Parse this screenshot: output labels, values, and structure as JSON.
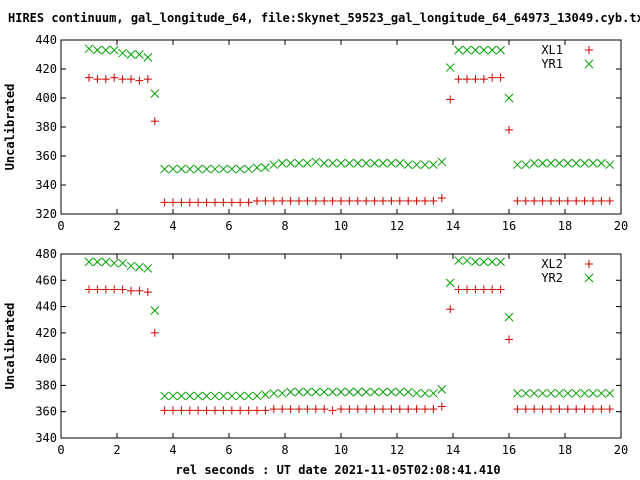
{
  "title": "HIRES continuum, gal_longitude_64, file:Skynet_59523_gal_longitude_64_64973_13049.cyb.txt",
  "xlabel": "rel seconds : UT date 2021-11-05T02:08:41.410",
  "colors": {
    "red": "#cc0000",
    "green": "#00a000",
    "axis": "#000000"
  },
  "chart_data": [
    {
      "type": "scatter",
      "ylabel": "Uncalibrated",
      "xlim": [
        0,
        20
      ],
      "ylim": [
        320,
        440
      ],
      "xticks": [
        0,
        2,
        4,
        6,
        8,
        10,
        12,
        14,
        16,
        18,
        20
      ],
      "yticks": [
        320,
        340,
        360,
        380,
        400,
        420,
        440
      ],
      "grid": false,
      "legend_position": "top-right",
      "series": [
        {
          "name": "XL1",
          "marker": "plus",
          "color": "#cc0000",
          "x": [
            1.0,
            1.3,
            1.6,
            1.9,
            2.2,
            2.5,
            2.8,
            3.1,
            3.35,
            3.7,
            4.0,
            4.3,
            4.6,
            4.9,
            5.2,
            5.5,
            5.8,
            6.1,
            6.4,
            6.7,
            7.0,
            7.3,
            7.6,
            7.9,
            8.2,
            8.5,
            8.8,
            9.1,
            9.4,
            9.7,
            10.0,
            10.3,
            10.6,
            10.9,
            11.2,
            11.5,
            11.8,
            12.1,
            12.4,
            12.7,
            13.0,
            13.3,
            13.6,
            13.9,
            14.2,
            14.5,
            14.8,
            15.1,
            15.4,
            15.7,
            16.0,
            16.3,
            16.6,
            16.9,
            17.2,
            17.5,
            17.8,
            18.1,
            18.4,
            18.7,
            19.0,
            19.3,
            19.6
          ],
          "y": [
            414,
            413,
            413,
            414,
            413,
            413,
            412,
            413,
            384,
            328,
            328,
            328,
            328,
            328,
            328,
            328,
            328,
            328,
            328,
            328,
            329,
            329,
            329,
            329,
            329,
            329,
            329,
            329,
            329,
            329,
            329,
            329,
            329,
            329,
            329,
            329,
            329,
            329,
            329,
            329,
            329,
            329,
            331,
            399,
            413,
            413,
            413,
            413,
            414,
            414,
            378,
            329,
            329,
            329,
            329,
            329,
            329,
            329,
            329,
            329,
            329,
            329,
            329
          ]
        },
        {
          "name": "YR1",
          "marker": "cross",
          "color": "#00a000",
          "x": [
            1.0,
            1.3,
            1.6,
            1.9,
            2.2,
            2.5,
            2.8,
            3.1,
            3.35,
            3.7,
            4.0,
            4.3,
            4.6,
            4.9,
            5.2,
            5.5,
            5.8,
            6.1,
            6.4,
            6.7,
            7.0,
            7.3,
            7.6,
            7.9,
            8.2,
            8.5,
            8.8,
            9.1,
            9.4,
            9.7,
            10.0,
            10.3,
            10.6,
            10.9,
            11.2,
            11.5,
            11.8,
            12.1,
            12.4,
            12.7,
            13.0,
            13.3,
            13.6,
            13.9,
            14.2,
            14.5,
            14.8,
            15.1,
            15.4,
            15.7,
            16.0,
            16.3,
            16.6,
            16.9,
            17.2,
            17.5,
            17.8,
            18.1,
            18.4,
            18.7,
            19.0,
            19.3,
            19.6
          ],
          "y": [
            434,
            433,
            433,
            433,
            431,
            430,
            430,
            428,
            403,
            351,
            351,
            351,
            351,
            351,
            351,
            351,
            351,
            351,
            351,
            351,
            352,
            352,
            354,
            355,
            355,
            355,
            355,
            356,
            355,
            355,
            355,
            355,
            355,
            355,
            355,
            355,
            355,
            355,
            354,
            354,
            354,
            354,
            356,
            421,
            433,
            433,
            433,
            433,
            433,
            433,
            400,
            354,
            354,
            355,
            355,
            355,
            355,
            355,
            355,
            355,
            355,
            355,
            354
          ]
        }
      ]
    },
    {
      "type": "scatter",
      "ylabel": "Uncalibrated",
      "xlim": [
        0,
        20
      ],
      "ylim": [
        340,
        480
      ],
      "xticks": [
        0,
        2,
        4,
        6,
        8,
        10,
        12,
        14,
        16,
        18,
        20
      ],
      "yticks": [
        340,
        360,
        380,
        400,
        420,
        440,
        460,
        480
      ],
      "grid": false,
      "legend_position": "top-right",
      "series": [
        {
          "name": "XL2",
          "marker": "plus",
          "color": "#cc0000",
          "x": [
            1.0,
            1.3,
            1.6,
            1.9,
            2.2,
            2.5,
            2.8,
            3.1,
            3.35,
            3.7,
            4.0,
            4.3,
            4.6,
            4.9,
            5.2,
            5.5,
            5.8,
            6.1,
            6.4,
            6.7,
            7.0,
            7.3,
            7.6,
            7.9,
            8.2,
            8.5,
            8.8,
            9.1,
            9.4,
            9.7,
            10.0,
            10.3,
            10.6,
            10.9,
            11.2,
            11.5,
            11.8,
            12.1,
            12.4,
            12.7,
            13.0,
            13.3,
            13.6,
            13.9,
            14.2,
            14.5,
            14.8,
            15.1,
            15.4,
            15.7,
            16.0,
            16.3,
            16.6,
            16.9,
            17.2,
            17.5,
            17.8,
            18.1,
            18.4,
            18.7,
            19.0,
            19.3,
            19.6
          ],
          "y": [
            453,
            453,
            453,
            453,
            453,
            452,
            452,
            451,
            420,
            361,
            361,
            361,
            361,
            361,
            361,
            361,
            361,
            361,
            361,
            361,
            361,
            361,
            362,
            362,
            362,
            362,
            362,
            362,
            362,
            361,
            362,
            362,
            362,
            362,
            362,
            362,
            362,
            362,
            362,
            362,
            362,
            362,
            364,
            438,
            453,
            453,
            453,
            453,
            453,
            453,
            415,
            362,
            362,
            362,
            362,
            362,
            362,
            362,
            362,
            362,
            362,
            362,
            362
          ]
        },
        {
          "name": "YR2",
          "marker": "cross",
          "color": "#00a000",
          "x": [
            1.0,
            1.3,
            1.6,
            1.9,
            2.2,
            2.5,
            2.8,
            3.1,
            3.35,
            3.7,
            4.0,
            4.3,
            4.6,
            4.9,
            5.2,
            5.5,
            5.8,
            6.1,
            6.4,
            6.7,
            7.0,
            7.3,
            7.6,
            7.9,
            8.2,
            8.5,
            8.8,
            9.1,
            9.4,
            9.7,
            10.0,
            10.3,
            10.6,
            10.9,
            11.2,
            11.5,
            11.8,
            12.1,
            12.4,
            12.7,
            13.0,
            13.3,
            13.6,
            13.9,
            14.2,
            14.5,
            14.8,
            15.1,
            15.4,
            15.7,
            16.0,
            16.3,
            16.6,
            16.9,
            17.2,
            17.5,
            17.8,
            18.1,
            18.4,
            18.7,
            19.0,
            19.3,
            19.6
          ],
          "y": [
            474,
            474,
            474,
            473,
            473,
            471,
            470,
            469,
            437,
            372,
            372,
            372,
            372,
            372,
            372,
            372,
            372,
            372,
            372,
            372,
            372,
            373,
            374,
            374,
            375,
            375,
            375,
            375,
            375,
            375,
            375,
            375,
            375,
            375,
            375,
            375,
            375,
            375,
            375,
            374,
            374,
            374,
            377,
            458,
            475,
            475,
            474,
            474,
            474,
            474,
            432,
            374,
            374,
            374,
            374,
            374,
            374,
            374,
            374,
            374,
            374,
            374,
            374
          ]
        }
      ]
    }
  ]
}
